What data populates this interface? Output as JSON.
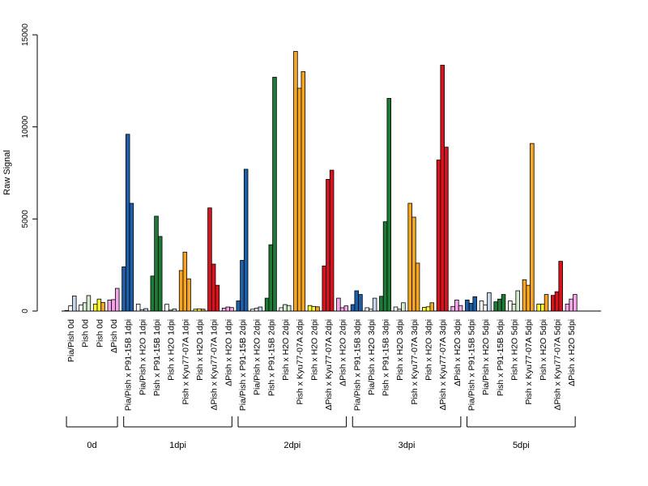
{
  "chart_data": {
    "type": "bar",
    "ylabel": "Raw Signal",
    "ylim": [
      0,
      15000
    ],
    "yticks": [
      0,
      5000,
      10000,
      15000
    ],
    "grid": false,
    "legend": "none",
    "colors": {
      "white": "#ffffff",
      "lightblue": "#c6d9ec",
      "blue": "#1f5fa8",
      "green": "#1e7a34",
      "lightgreen": "#d6ecd0",
      "yellow": "#ffff33",
      "orange": "#f6a623",
      "red": "#d7141e",
      "pink": "#f4a6e8"
    },
    "categories": [
      {
        "label": "Pia/Pish 0d",
        "values": [
          30,
          280,
          820
        ],
        "colors": [
          "white",
          "white",
          "lightblue"
        ]
      },
      {
        "label": "Pish 0d",
        "values": [
          330,
          450,
          840
        ],
        "colors": [
          "white",
          "lightgreen",
          "lightgreen"
        ]
      },
      {
        "label": "Pish 0d",
        "values": [
          380,
          650,
          470
        ],
        "colors": [
          "yellow",
          "yellow",
          "orange"
        ]
      },
      {
        "label": "ΔPish 0d",
        "values": [
          600,
          620,
          1230
        ],
        "colors": [
          "pink",
          "pink",
          "pink"
        ]
      },
      {
        "label": "Pia/Pish x P91-15B 1dpi",
        "values": [
          2400,
          9600,
          5850
        ],
        "colors": [
          "blue",
          "blue",
          "blue"
        ]
      },
      {
        "label": "Pia/Pish x H2O 1dpi",
        "values": [
          380,
          60,
          130
        ],
        "colors": [
          "white",
          "white",
          "lightblue"
        ]
      },
      {
        "label": "Pish x P91-15B 1dpi",
        "values": [
          1900,
          5150,
          4050
        ],
        "colors": [
          "green",
          "green",
          "green"
        ]
      },
      {
        "label": "Pish x H2O 1dpi",
        "values": [
          370,
          50,
          110
        ],
        "colors": [
          "white",
          "lightgreen",
          "lightgreen"
        ]
      },
      {
        "label": "Pish x Kyu77-07A 1dpi",
        "values": [
          2200,
          3200,
          1750
        ],
        "colors": [
          "orange",
          "orange",
          "orange"
        ]
      },
      {
        "label": "Pish x H2O 1dpi",
        "values": [
          100,
          120,
          100
        ],
        "colors": [
          "yellow",
          "yellow",
          "orange"
        ]
      },
      {
        "label": "ΔPish x Kyu77-07A 1dpi",
        "values": [
          5600,
          2550,
          1400
        ],
        "colors": [
          "red",
          "red",
          "red"
        ]
      },
      {
        "label": "ΔPish x H2O 1dpi",
        "values": [
          160,
          220,
          190
        ],
        "colors": [
          "pink",
          "pink",
          "pink"
        ]
      },
      {
        "label": "Pia/Pish x P91-15B 2dpi",
        "values": [
          550,
          2750,
          7700
        ],
        "colors": [
          "blue",
          "blue",
          "blue"
        ]
      },
      {
        "label": "Pia/Pish x H2O 2dpi",
        "values": [
          100,
          150,
          220
        ],
        "colors": [
          "white",
          "white",
          "lightblue"
        ]
      },
      {
        "label": "Pish x P91-15B 2dpi",
        "values": [
          700,
          3600,
          12700
        ],
        "colors": [
          "green",
          "green",
          "green"
        ]
      },
      {
        "label": "Pish x H2O 2dpi",
        "values": [
          180,
          350,
          300
        ],
        "colors": [
          "white",
          "lightgreen",
          "lightgreen"
        ]
      },
      {
        "label": "Pish x Kyu77-07A 2dpi",
        "values": [
          14100,
          12100,
          13000
        ],
        "colors": [
          "orange",
          "orange",
          "orange"
        ]
      },
      {
        "label": "Pish x H2O 2dpi",
        "values": [
          300,
          250,
          230
        ],
        "colors": [
          "yellow",
          "yellow",
          "orange"
        ]
      },
      {
        "label": "ΔPish x Kyu77-07A 2dpi",
        "values": [
          2450,
          7150,
          7650
        ],
        "colors": [
          "red",
          "red",
          "red"
        ]
      },
      {
        "label": "ΔPish x H2O 2dpi",
        "values": [
          700,
          180,
          280
        ],
        "colors": [
          "pink",
          "pink",
          "pink"
        ]
      },
      {
        "label": "Pia/Pish x P91-15B 3dpi",
        "values": [
          350,
          1100,
          900
        ],
        "colors": [
          "blue",
          "blue",
          "blue"
        ]
      },
      {
        "label": "Pia/Pish x H2O 3dpi",
        "values": [
          180,
          100,
          700
        ],
        "colors": [
          "white",
          "white",
          "lightblue"
        ]
      },
      {
        "label": "Pish x P91-15B 3dpi",
        "values": [
          800,
          4850,
          11550
        ],
        "colors": [
          "green",
          "green",
          "green"
        ]
      },
      {
        "label": "Pish x H2O 3dpi",
        "values": [
          220,
          100,
          450
        ],
        "colors": [
          "white",
          "lightgreen",
          "lightgreen"
        ]
      },
      {
        "label": "Pish x Kyu77-07A 3dpi",
        "values": [
          5850,
          5100,
          2600
        ],
        "colors": [
          "orange",
          "orange",
          "orange"
        ]
      },
      {
        "label": "Pish x H2O 3dpi",
        "values": [
          200,
          230,
          450
        ],
        "colors": [
          "yellow",
          "yellow",
          "orange"
        ]
      },
      {
        "label": "ΔPish x Kyu77-07A 3dpi",
        "values": [
          8200,
          13350,
          8900
        ],
        "colors": [
          "red",
          "red",
          "red"
        ]
      },
      {
        "label": "ΔPish x H2O 3dpi",
        "values": [
          250,
          600,
          300
        ],
        "colors": [
          "pink",
          "pink",
          "pink"
        ]
      },
      {
        "label": "Pia/Pish x P91-15B 5dpi",
        "values": [
          600,
          420,
          780
        ],
        "colors": [
          "blue",
          "blue",
          "blue"
        ]
      },
      {
        "label": "Pia/Pish x H2O 5dpi",
        "values": [
          550,
          330,
          1000
        ],
        "colors": [
          "white",
          "white",
          "lightblue"
        ]
      },
      {
        "label": "Pish x P91-15B 5dpi",
        "values": [
          500,
          650,
          900
        ],
        "colors": [
          "green",
          "green",
          "green"
        ]
      },
      {
        "label": "Pish x H2O 5dpi",
        "values": [
          550,
          380,
          1100
        ],
        "colors": [
          "white",
          "lightgreen",
          "lightgreen"
        ]
      },
      {
        "label": "Pish x Kyu77-07A 5dpi",
        "values": [
          1700,
          1400,
          9100
        ],
        "colors": [
          "orange",
          "orange",
          "orange"
        ]
      },
      {
        "label": "Pish x H2O 5dpi",
        "values": [
          380,
          380,
          900
        ],
        "colors": [
          "yellow",
          "yellow",
          "orange"
        ]
      },
      {
        "label": "ΔPish x Kyu77-07A 5dpi",
        "values": [
          850,
          1050,
          2700
        ],
        "colors": [
          "red",
          "red",
          "red"
        ]
      },
      {
        "label": "ΔPish x H2O 5dpi",
        "values": [
          380,
          650,
          900
        ],
        "colors": [
          "pink",
          "pink",
          "pink"
        ]
      }
    ],
    "groups": [
      {
        "label": "0d",
        "first": 0,
        "last": 3
      },
      {
        "label": "1dpi",
        "first": 4,
        "last": 11
      },
      {
        "label": "2dpi",
        "first": 12,
        "last": 19
      },
      {
        "label": "3dpi",
        "first": 20,
        "last": 27
      },
      {
        "label": "5dpi",
        "first": 28,
        "last": 35
      }
    ]
  }
}
